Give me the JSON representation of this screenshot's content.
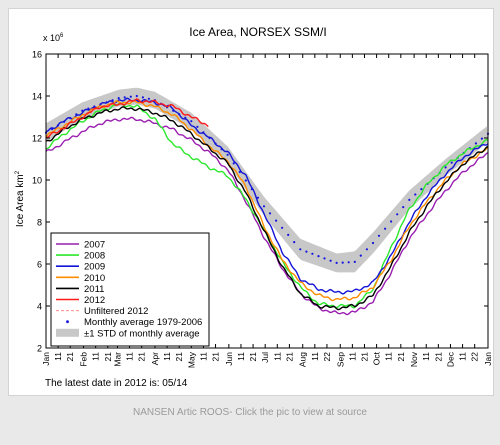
{
  "caption": "NANSEN Artic ROOS- Click the pic to view at source",
  "chart_data": {
    "type": "line",
    "title": "Ice Area, NORSEX SSM/I",
    "ylabel": "Ice Area km",
    "ylabel_sup": "2",
    "y_multiplier": "x 10",
    "y_multiplier_exp": "6",
    "ylim": [
      2,
      16
    ],
    "y_ticks": [
      "2",
      "4",
      "6",
      "8",
      "10",
      "12",
      "14",
      "16"
    ],
    "xlim": [
      0,
      365
    ],
    "grid": false,
    "legend_position": "bottom-left",
    "note": "The latest date in 2012 is: 05/14",
    "x_ticks": [
      {
        "day": 0,
        "label": "Jan"
      },
      {
        "day": 10,
        "label": "11"
      },
      {
        "day": 20,
        "label": "21"
      },
      {
        "day": 31,
        "label": "Feb"
      },
      {
        "day": 41,
        "label": "11"
      },
      {
        "day": 51,
        "label": "21"
      },
      {
        "day": 59,
        "label": "Mar"
      },
      {
        "day": 69,
        "label": "11"
      },
      {
        "day": 79,
        "label": "21"
      },
      {
        "day": 90,
        "label": "Apr"
      },
      {
        "day": 100,
        "label": "11"
      },
      {
        "day": 110,
        "label": "21"
      },
      {
        "day": 120,
        "label": "May"
      },
      {
        "day": 130,
        "label": "11"
      },
      {
        "day": 140,
        "label": "21"
      },
      {
        "day": 151,
        "label": "Jun"
      },
      {
        "day": 161,
        "label": "11"
      },
      {
        "day": 171,
        "label": "21"
      },
      {
        "day": 181,
        "label": "Jul"
      },
      {
        "day": 191,
        "label": "11"
      },
      {
        "day": 201,
        "label": "21"
      },
      {
        "day": 212,
        "label": "Aug"
      },
      {
        "day": 222,
        "label": "11"
      },
      {
        "day": 232,
        "label": "22"
      },
      {
        "day": 243,
        "label": "Sep"
      },
      {
        "day": 253,
        "label": "11"
      },
      {
        "day": 263,
        "label": "21"
      },
      {
        "day": 273,
        "label": "Oct"
      },
      {
        "day": 283,
        "label": "11"
      },
      {
        "day": 293,
        "label": "21"
      },
      {
        "day": 304,
        "label": "Nov"
      },
      {
        "day": 314,
        "label": "11"
      },
      {
        "day": 324,
        "label": "21"
      },
      {
        "day": 334,
        "label": "Dec"
      },
      {
        "day": 344,
        "label": "11"
      },
      {
        "day": 354,
        "label": "22"
      },
      {
        "day": 365,
        "label": "Jan"
      }
    ],
    "std_band": {
      "name": "±1 STD of monthly average",
      "color": "#c8c8c8",
      "x": [
        0,
        30,
        60,
        75,
        90,
        120,
        150,
        180,
        210,
        240,
        255,
        270,
        300,
        330,
        365
      ],
      "upper": [
        12.7,
        13.7,
        14.3,
        14.4,
        14.2,
        13.2,
        11.6,
        9.2,
        7.2,
        6.5,
        6.6,
        7.5,
        9.5,
        11.0,
        12.6
      ],
      "lower": [
        11.8,
        12.9,
        13.5,
        13.6,
        13.4,
        12.4,
        10.8,
        8.3,
        6.2,
        5.6,
        5.6,
        6.5,
        8.6,
        10.2,
        11.8
      ]
    },
    "monthly_average": {
      "name": "Monthly average 1979-2006",
      "color": "#1515e0",
      "x": [
        0,
        30,
        60,
        75,
        90,
        120,
        150,
        180,
        210,
        240,
        255,
        270,
        300,
        330,
        365
      ],
      "values": [
        12.25,
        13.3,
        13.9,
        14.0,
        13.8,
        12.8,
        11.2,
        8.75,
        6.7,
        6.05,
        6.1,
        7.0,
        9.05,
        10.6,
        12.2
      ]
    },
    "unfiltered_2012": {
      "name": "Unfiltered 2012",
      "color": "#ff8c8c"
    },
    "series": [
      {
        "name": "2007",
        "color": "#9a1fb0",
        "x": [
          0,
          15,
          30,
          45,
          60,
          75,
          90,
          105,
          120,
          135,
          150,
          165,
          180,
          195,
          210,
          225,
          240,
          255,
          270,
          285,
          300,
          315,
          330,
          345,
          365
        ],
        "values": [
          11.3,
          11.8,
          12.3,
          12.7,
          12.9,
          12.9,
          12.7,
          12.4,
          11.9,
          11.3,
          10.5,
          9.0,
          7.3,
          5.8,
          4.6,
          3.9,
          3.65,
          3.7,
          4.2,
          5.6,
          7.2,
          8.4,
          9.5,
          10.4,
          11.3
        ]
      },
      {
        "name": "2008",
        "color": "#2ce82c",
        "x": [
          0,
          15,
          30,
          45,
          60,
          75,
          90,
          105,
          120,
          135,
          150,
          165,
          180,
          195,
          210,
          225,
          240,
          255,
          270,
          285,
          300,
          315,
          330,
          345,
          365
        ],
        "values": [
          11.5,
          12.2,
          12.8,
          13.3,
          13.6,
          13.5,
          12.9,
          11.7,
          11.1,
          10.6,
          10.2,
          9.1,
          7.6,
          6.1,
          4.9,
          4.1,
          4.0,
          4.0,
          4.8,
          6.8,
          8.6,
          9.8,
          10.7,
          11.3,
          11.9
        ]
      },
      {
        "name": "2009",
        "color": "#1414d8",
        "x": [
          0,
          15,
          30,
          45,
          60,
          75,
          90,
          105,
          120,
          135,
          150,
          165,
          180,
          195,
          210,
          225,
          240,
          255,
          270,
          285,
          300,
          315,
          330,
          345,
          365
        ],
        "values": [
          12.3,
          12.8,
          13.2,
          13.6,
          13.8,
          13.8,
          13.7,
          13.4,
          12.6,
          12.0,
          11.3,
          10.2,
          8.4,
          6.6,
          5.3,
          4.8,
          4.65,
          4.7,
          5.1,
          6.4,
          8.0,
          9.3,
          10.3,
          11.1,
          11.8
        ]
      },
      {
        "name": "2010",
        "color": "#ff8c00",
        "x": [
          0,
          15,
          30,
          45,
          60,
          75,
          90,
          105,
          120,
          135,
          150,
          165,
          180,
          195,
          210,
          225,
          240,
          255,
          270,
          285,
          300,
          315,
          330,
          345,
          365
        ],
        "values": [
          12.1,
          12.6,
          13.1,
          13.5,
          13.7,
          13.7,
          13.5,
          13.1,
          12.4,
          11.6,
          10.9,
          9.7,
          7.8,
          6.2,
          5.1,
          4.5,
          4.3,
          4.4,
          4.9,
          6.2,
          7.8,
          9.0,
          10.0,
          10.8,
          11.5
        ]
      },
      {
        "name": "2011",
        "color": "#000000",
        "x": [
          0,
          15,
          30,
          45,
          60,
          75,
          90,
          105,
          120,
          135,
          150,
          165,
          180,
          195,
          210,
          225,
          240,
          255,
          270,
          285,
          300,
          315,
          330,
          345,
          365
        ],
        "values": [
          11.8,
          12.4,
          12.9,
          13.2,
          13.4,
          13.4,
          13.2,
          12.8,
          12.2,
          11.5,
          10.8,
          9.4,
          7.6,
          5.9,
          4.6,
          4.0,
          3.9,
          4.0,
          4.5,
          5.9,
          7.5,
          8.8,
          9.9,
          10.8,
          11.6
        ]
      },
      {
        "name": "2012",
        "color": "#ff1a1a",
        "x": [
          0,
          15,
          30,
          45,
          60,
          75,
          90,
          105,
          120,
          134
        ],
        "values": [
          12.0,
          12.5,
          13.0,
          13.5,
          13.6,
          13.8,
          13.7,
          13.5,
          13.0,
          12.6
        ]
      }
    ]
  }
}
